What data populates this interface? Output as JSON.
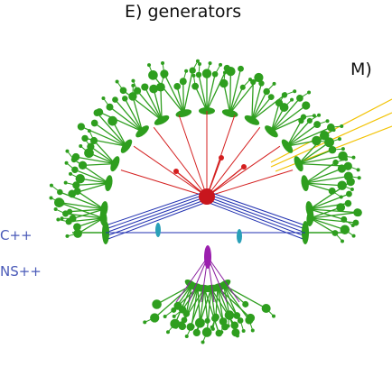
{
  "title_fragment": "E) generators",
  "subtitle_fragment": "M)",
  "labels": [
    "C++",
    "NS++"
  ]
}
